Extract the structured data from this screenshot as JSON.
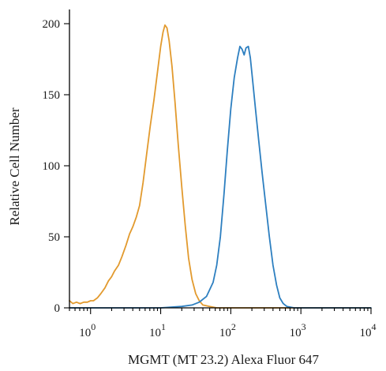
{
  "chart_data": {
    "type": "line",
    "xlabel": "MGMT (MT 23.2) Alexa Fluor 647",
    "ylabel": "Relative Cell Number",
    "x_scale": "log",
    "xlim": [
      0.5,
      10000
    ],
    "ylim": [
      0,
      210
    ],
    "y_ticks": [
      0,
      50,
      100,
      150,
      200
    ],
    "y_tick_labels": [
      "0",
      "50",
      "100",
      "150",
      "200"
    ],
    "x_ticks": [
      {
        "value": 1,
        "base": "10",
        "exp": "0"
      },
      {
        "value": 10,
        "base": "10",
        "exp": "1"
      },
      {
        "value": 100,
        "base": "10",
        "exp": "2"
      },
      {
        "value": 1000,
        "base": "10",
        "exp": "3"
      },
      {
        "value": 10000,
        "base": "10",
        "exp": "4"
      }
    ],
    "grid": false,
    "series": [
      {
        "color": "#e29a2e",
        "points": [
          [
            0.5,
            5
          ],
          [
            0.56,
            3
          ],
          [
            0.63,
            4
          ],
          [
            0.71,
            3
          ],
          [
            0.8,
            4
          ],
          [
            0.9,
            4
          ],
          [
            1.0,
            5
          ],
          [
            1.1,
            5
          ],
          [
            1.25,
            7
          ],
          [
            1.4,
            10
          ],
          [
            1.6,
            14
          ],
          [
            1.8,
            19
          ],
          [
            2.0,
            22
          ],
          [
            2.2,
            26
          ],
          [
            2.5,
            30
          ],
          [
            2.8,
            36
          ],
          [
            3.2,
            44
          ],
          [
            3.6,
            52
          ],
          [
            4.0,
            57
          ],
          [
            4.5,
            64
          ],
          [
            5.0,
            72
          ],
          [
            5.6,
            88
          ],
          [
            6.3,
            108
          ],
          [
            7.1,
            128
          ],
          [
            8.0,
            146
          ],
          [
            9.0,
            166
          ],
          [
            10.0,
            184
          ],
          [
            10.8,
            194
          ],
          [
            11.5,
            199
          ],
          [
            12.3,
            197
          ],
          [
            13.2,
            188
          ],
          [
            14.5,
            170
          ],
          [
            16.0,
            145
          ],
          [
            17.8,
            115
          ],
          [
            20.0,
            85
          ],
          [
            22.4,
            58
          ],
          [
            25.0,
            35
          ],
          [
            28.0,
            20
          ],
          [
            31.6,
            10
          ],
          [
            35.5,
            5
          ],
          [
            40.0,
            2
          ],
          [
            50.0,
            1
          ],
          [
            63.0,
            0
          ],
          [
            100.0,
            0
          ],
          [
            1000.0,
            0
          ],
          [
            10000.0,
            0
          ]
        ]
      },
      {
        "color": "#2d7fc0",
        "points": [
          [
            0.5,
            0
          ],
          [
            10.0,
            0
          ],
          [
            20.0,
            1
          ],
          [
            28.0,
            2
          ],
          [
            35.5,
            4
          ],
          [
            45.0,
            8
          ],
          [
            56.0,
            18
          ],
          [
            63.0,
            30
          ],
          [
            71.0,
            50
          ],
          [
            80.0,
            80
          ],
          [
            89.0,
            110
          ],
          [
            100.0,
            140
          ],
          [
            112.0,
            162
          ],
          [
            125.0,
            176
          ],
          [
            135.0,
            184
          ],
          [
            145.0,
            182
          ],
          [
            155.0,
            178
          ],
          [
            165.0,
            183
          ],
          [
            178.0,
            184
          ],
          [
            190.0,
            176
          ],
          [
            205.0,
            160
          ],
          [
            225.0,
            140
          ],
          [
            250.0,
            118
          ],
          [
            280.0,
            95
          ],
          [
            316.0,
            72
          ],
          [
            355.0,
            50
          ],
          [
            400.0,
            30
          ],
          [
            450.0,
            16
          ],
          [
            500.0,
            7
          ],
          [
            560.0,
            3
          ],
          [
            630.0,
            1
          ],
          [
            800.0,
            0
          ],
          [
            1000.0,
            0
          ],
          [
            10000.0,
            0
          ]
        ]
      }
    ]
  }
}
